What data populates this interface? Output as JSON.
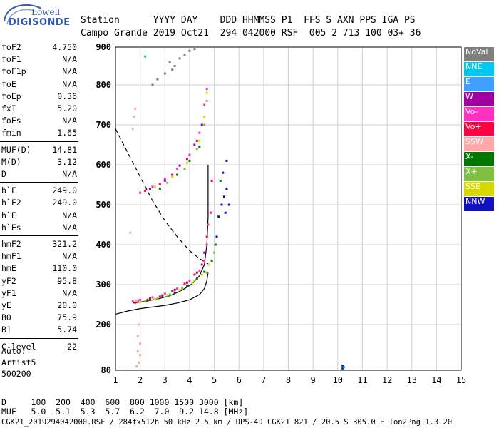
{
  "logo": {
    "line1": "Lowell",
    "line2": "DIGISONDE"
  },
  "header": {
    "labels": "Station      YYYY DAY    DDD HHMMSS P1  FFS S AXN PPS IGA PS",
    "values": "Campo Grande 2019 Oct21  294 042000 RSF  005 2 713 100 03+ 36"
  },
  "params": [
    {
      "k": "foF2",
      "v": "4.750"
    },
    {
      "k": "foF1",
      "v": "N/A"
    },
    {
      "k": "foF1p",
      "v": "N/A"
    },
    {
      "k": "foE",
      "v": "N/A"
    },
    {
      "k": "foEp",
      "v": "0.36"
    },
    {
      "k": "fxI",
      "v": "5.20"
    },
    {
      "k": "foEs",
      "v": "N/A"
    },
    {
      "k": "fmin",
      "v": "1.65"
    },
    {
      "k": "MUF(D)",
      "v": "14.81"
    },
    {
      "k": "M(D)",
      "v": "3.12"
    },
    {
      "k": "D",
      "v": "N/A"
    },
    {
      "k": "h`F",
      "v": "249.0"
    },
    {
      "k": "h`F2",
      "v": "249.0"
    },
    {
      "k": "h`E",
      "v": "N/A"
    },
    {
      "k": "h`Es",
      "v": "N/A"
    },
    {
      "k": "hmF2",
      "v": "321.2"
    },
    {
      "k": "hmF1",
      "v": "N/A"
    },
    {
      "k": "hmE",
      "v": "110.0"
    },
    {
      "k": "yF2",
      "v": "95.8"
    },
    {
      "k": "yF1",
      "v": "N/A"
    },
    {
      "k": "yE",
      "v": "20.0"
    },
    {
      "k": "B0",
      "v": "75.9"
    },
    {
      "k": "B1",
      "v": "5.74"
    },
    {
      "k": "C-level",
      "v": "22"
    }
  ],
  "auto": {
    "line1": "Auto:",
    "line2": "Artist5",
    "line3": "500200"
  },
  "legend": [
    {
      "label": "NoVal",
      "color": "#7f7f7f"
    },
    {
      "label": "NNE",
      "color": "#00c8f0"
    },
    {
      "label": "E",
      "color": "#3f9fff"
    },
    {
      "label": "W",
      "color": "#a000a0"
    },
    {
      "label": "Vo-",
      "color": "#ff30c0"
    },
    {
      "label": "Vo+",
      "color": "#ff0040"
    },
    {
      "label": "SSW",
      "color": "#ffa8a8"
    },
    {
      "label": "X-",
      "color": "#007800"
    },
    {
      "label": "X+",
      "color": "#80c040"
    },
    {
      "label": "SSE",
      "color": "#d8d800"
    },
    {
      "label": "NNW",
      "color": "#1010c0"
    }
  ],
  "footer": {
    "line1": "D     100  200  400  600  800 1000 1500 3000 [km]",
    "line2": "MUF   5.0  5.1  5.3  5.7  6.2  7.0  9.2 14.8 [MHz]",
    "line3": "CGK21_2019294042000.RSF / 284fx512h 50 kHz 2.5 km / DPS-4D CGK21 821 / 20.5 S 305.0 E Ion2Png 1.3.20"
  },
  "chart_data": {
    "type": "scatter",
    "xlim": [
      1,
      15
    ],
    "ylim": [
      80,
      900
    ],
    "xticks": [
      1,
      2,
      3,
      4,
      5,
      6,
      7,
      8,
      9,
      10,
      11,
      12,
      13,
      14,
      15
    ],
    "yticks": [
      80,
      200,
      300,
      400,
      500,
      600,
      700,
      800,
      900
    ],
    "x_unit": "MHz",
    "y_unit": "km",
    "series": [
      {
        "name": "Vo-",
        "color": "#ff30c0",
        "points": [
          [
            1.7,
            258
          ],
          [
            2.0,
            262
          ],
          [
            2.5,
            268
          ],
          [
            3.0,
            277
          ],
          [
            3.5,
            290
          ],
          [
            4.0,
            310
          ],
          [
            4.4,
            335
          ],
          [
            4.6,
            360
          ],
          [
            4.7,
            400
          ],
          [
            4.75,
            450
          ],
          [
            2.0,
            530
          ],
          [
            2.5,
            545
          ],
          [
            3.0,
            565
          ],
          [
            3.5,
            590
          ],
          [
            4.0,
            625
          ],
          [
            4.4,
            680
          ],
          [
            4.6,
            750
          ],
          [
            4.7,
            790
          ]
        ]
      },
      {
        "name": "Vo+",
        "color": "#ff0040",
        "points": [
          [
            1.8,
            255
          ],
          [
            2.3,
            262
          ],
          [
            2.8,
            270
          ],
          [
            3.3,
            283
          ],
          [
            3.8,
            302
          ],
          [
            4.2,
            325
          ],
          [
            4.5,
            350
          ],
          [
            4.7,
            420
          ],
          [
            4.85,
            480
          ],
          [
            4.9,
            560
          ],
          [
            2.2,
            535
          ],
          [
            2.8,
            552
          ],
          [
            3.3,
            575
          ],
          [
            3.9,
            615
          ],
          [
            4.3,
            660
          ]
        ]
      },
      {
        "name": "W",
        "color": "#a000a0",
        "points": [
          [
            1.9,
            260
          ],
          [
            2.4,
            266
          ],
          [
            2.9,
            273
          ],
          [
            3.4,
            287
          ],
          [
            3.9,
            305
          ],
          [
            4.3,
            330
          ],
          [
            4.6,
            380
          ],
          [
            2.4,
            540
          ],
          [
            3.0,
            560
          ],
          [
            3.6,
            598
          ],
          [
            4.2,
            650
          ],
          [
            4.5,
            700
          ]
        ]
      },
      {
        "name": "X-",
        "color": "#007800",
        "points": [
          [
            2.4,
            262
          ],
          [
            2.9,
            270
          ],
          [
            3.4,
            280
          ],
          [
            3.9,
            296
          ],
          [
            4.3,
            315
          ],
          [
            4.6,
            332
          ],
          [
            4.9,
            360
          ],
          [
            5.05,
            400
          ],
          [
            5.15,
            470
          ],
          [
            5.25,
            560
          ],
          [
            2.8,
            540
          ],
          [
            3.5,
            575
          ],
          [
            4.0,
            610
          ],
          [
            4.4,
            645
          ]
        ]
      },
      {
        "name": "X+",
        "color": "#80c040",
        "points": [
          [
            2.2,
            258
          ],
          [
            2.7,
            265
          ],
          [
            3.2,
            275
          ],
          [
            3.7,
            290
          ],
          [
            4.2,
            308
          ],
          [
            4.7,
            330
          ],
          [
            5.0,
            380
          ],
          [
            3.1,
            555
          ],
          [
            3.8,
            590
          ],
          [
            4.3,
            640
          ],
          [
            4.6,
            700
          ],
          [
            4.7,
            760
          ]
        ]
      },
      {
        "name": "SSE",
        "color": "#d8d800",
        "points": [
          [
            2.0,
            256
          ],
          [
            2.6,
            264
          ],
          [
            3.1,
            273
          ],
          [
            3.6,
            286
          ],
          [
            4.1,
            304
          ],
          [
            4.5,
            325
          ],
          [
            4.8,
            350
          ],
          [
            2.6,
            545
          ],
          [
            3.3,
            570
          ],
          [
            3.9,
            605
          ],
          [
            4.4,
            660
          ],
          [
            4.6,
            720
          ],
          [
            4.7,
            780
          ]
        ]
      },
      {
        "name": "NNW",
        "color": "#1010c0",
        "points": [
          [
            5.1,
            420
          ],
          [
            5.2,
            470
          ],
          [
            5.3,
            500
          ],
          [
            5.4,
            520
          ],
          [
            5.5,
            540
          ],
          [
            5.35,
            580
          ],
          [
            5.5,
            610
          ],
          [
            5.45,
            480
          ],
          [
            5.6,
            500
          ],
          [
            10.2,
            85
          ],
          [
            10.2,
            92
          ]
        ]
      },
      {
        "name": "SSW",
        "color": "#ffa8a8",
        "points": [
          [
            1.7,
            690
          ],
          [
            1.75,
            720
          ],
          [
            1.8,
            740
          ],
          [
            1.85,
            260
          ],
          [
            1.95,
            200
          ],
          [
            1.9,
            170
          ],
          [
            2.0,
            120
          ],
          [
            1.95,
            100
          ],
          [
            1.85,
            90
          ],
          [
            2.0,
            150
          ],
          [
            1.9,
            130
          ],
          [
            1.6,
            430
          ]
        ]
      },
      {
        "name": "NNE",
        "color": "#00c8f0",
        "points": [
          [
            10.25,
            88
          ],
          [
            2.2,
            875
          ]
        ]
      },
      {
        "name": "NoVal",
        "color": "#7f7f7f",
        "points": [
          [
            3.2,
            860
          ],
          [
            3.4,
            850
          ],
          [
            3.6,
            870
          ],
          [
            3.0,
            830
          ],
          [
            4.0,
            890
          ],
          [
            3.8,
            880
          ],
          [
            4.2,
            895
          ],
          [
            2.5,
            800
          ],
          [
            2.7,
            815
          ],
          [
            3.3,
            840
          ]
        ]
      }
    ],
    "curves": [
      {
        "name": "profile",
        "style": "solid",
        "points": [
          [
            1.0,
            226
          ],
          [
            1.5,
            234
          ],
          [
            2.0,
            240
          ],
          [
            2.5,
            244
          ],
          [
            3.0,
            248
          ],
          [
            3.5,
            254
          ],
          [
            4.0,
            262
          ],
          [
            4.4,
            275
          ],
          [
            4.6,
            290
          ],
          [
            4.7,
            310
          ],
          [
            4.75,
            330
          ]
        ]
      },
      {
        "name": "trace-fit",
        "style": "solid",
        "points": [
          [
            1.7,
            254
          ],
          [
            2.2,
            258
          ],
          [
            2.7,
            264
          ],
          [
            3.2,
            272
          ],
          [
            3.7,
            286
          ],
          [
            4.1,
            302
          ],
          [
            4.4,
            322
          ],
          [
            4.6,
            350
          ],
          [
            4.7,
            400
          ],
          [
            4.75,
            470
          ],
          [
            4.75,
            600
          ]
        ]
      },
      {
        "name": "muf",
        "style": "dashed",
        "points": [
          [
            1.0,
            690
          ],
          [
            1.5,
            630
          ],
          [
            2.0,
            570
          ],
          [
            2.5,
            510
          ],
          [
            3.0,
            460
          ],
          [
            3.5,
            420
          ],
          [
            4.0,
            385
          ],
          [
            4.4,
            365
          ],
          [
            4.75,
            352
          ]
        ]
      }
    ]
  }
}
